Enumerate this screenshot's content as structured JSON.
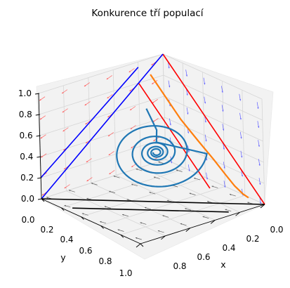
{
  "chart_data": {
    "type": "3d-line",
    "title": "Konkurence tří populací",
    "xlabel": "x",
    "ylabel": "y",
    "zlabel": "",
    "xlim": [
      0,
      1
    ],
    "ylim": [
      0,
      1
    ],
    "zlim": [
      0,
      1
    ],
    "x_ticks": [
      "0.0",
      "0.2",
      "0.4",
      "0.6",
      "0.8"
    ],
    "y_ticks": [
      "0.0",
      "0.2",
      "0.4",
      "0.6",
      "0.8",
      "1.0"
    ],
    "z_ticks": [
      "0.0",
      "0.2",
      "0.4",
      "0.6",
      "0.8",
      "1.0"
    ],
    "grid": true,
    "colors": {
      "spiral": "#1f77b4",
      "orange": "#ff7f0e",
      "red": "#ff0000",
      "blue": "#0000ff",
      "black": "#000000",
      "field_left": "#ff6060",
      "field_right": "#6060ff",
      "field_floor": "#606060"
    },
    "series": [
      {
        "color": "#ff0000",
        "segments": [
          [
            [
              0,
              0,
              1
            ],
            [
              1,
              0,
              0
            ]
          ],
          [
            [
              0,
              0.2,
              0.8
            ],
            [
              0.7,
              0.2,
              0.1
            ]
          ]
        ]
      },
      {
        "color": "#0000ff",
        "segments": [
          [
            [
              0,
              1,
              0
            ],
            [
              0,
              0,
              1
            ]
          ],
          [
            [
              0,
              1,
              0.2
            ],
            [
              0,
              0.2,
              0.95
            ]
          ]
        ]
      },
      {
        "color": "#000000",
        "segments": [
          [
            [
              1,
              0,
              0
            ],
            [
              0,
              1,
              0
            ]
          ],
          [
            [
              0.25,
              0.95,
              0
            ],
            [
              0.95,
              0.25,
              0
            ]
          ]
        ]
      },
      {
        "color": "#ff7f0e",
        "points": [
          [
            0.02,
            0.12,
            0.86
          ],
          [
            0.16,
            0.12,
            0.72
          ],
          [
            0.32,
            0.12,
            0.56
          ],
          [
            0.48,
            0.11,
            0.42
          ],
          [
            0.62,
            0.1,
            0.3
          ],
          [
            0.72,
            0.09,
            0.2
          ],
          [
            0.8,
            0.08,
            0.12
          ],
          [
            0.86,
            0.06,
            0.06
          ],
          [
            0.9,
            0.05,
            0.04
          ]
        ]
      },
      {
        "color": "#1f77b4",
        "spiral": {
          "center": [
            0.3333,
            0.3333,
            0.3333
          ],
          "start_radius": 0.32,
          "end_radius": 0.02,
          "turns": 5.5,
          "tail": [
            [
              0.2,
              0.3,
              0.68
            ],
            [
              0.3,
              0.3,
              0.52
            ],
            [
              0.32,
              0.32,
              0.42
            ]
          ]
        }
      }
    ]
  }
}
